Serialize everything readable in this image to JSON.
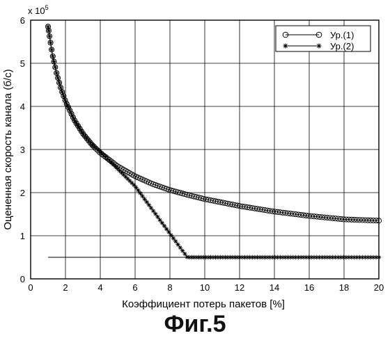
{
  "chart_data": {
    "type": "line",
    "title": "",
    "xlabel": "Коэффициент потерь пакетов [%]",
    "ylabel": "Оцененная скорость канала (б/с)",
    "y_multiplier": "x 10",
    "y_multiplier_exp": "5",
    "xlim": [
      0,
      20
    ],
    "ylim": [
      0,
      6
    ],
    "x_ticks": [
      "0",
      "2",
      "4",
      "6",
      "8",
      "10",
      "12",
      "14",
      "16",
      "18",
      "20"
    ],
    "y_ticks": [
      "0",
      "1",
      "2",
      "3",
      "4",
      "5",
      "6"
    ],
    "grid": "on",
    "legend_position": "top-right",
    "series": [
      {
        "name": "Ур.(1)",
        "marker": "circle",
        "x": [
          1,
          1.25,
          1.5,
          1.75,
          2,
          2.5,
          3,
          3.5,
          4,
          5,
          6,
          7,
          8,
          9,
          10,
          12,
          14,
          16,
          18,
          20
        ],
        "values": [
          5.85,
          5.2,
          4.75,
          4.4,
          4.12,
          3.69,
          3.37,
          3.12,
          2.92,
          2.61,
          2.38,
          2.2,
          2.06,
          1.95,
          1.85,
          1.69,
          1.56,
          1.46,
          1.38,
          1.35
        ]
      },
      {
        "name": "Ур.(2)",
        "marker": "star",
        "x": [
          1,
          1.25,
          1.5,
          1.75,
          2,
          2.5,
          3,
          3.5,
          4,
          5,
          6,
          7,
          8,
          9,
          10,
          12,
          14,
          16,
          18,
          20
        ],
        "values": [
          5.85,
          5.2,
          4.75,
          4.4,
          4.12,
          3.69,
          3.37,
          3.12,
          2.95,
          2.55,
          2.15,
          1.6,
          1.05,
          0.5,
          0.5,
          0.5,
          0.5,
          0.5,
          0.5,
          0.5
        ]
      },
      {
        "name": "",
        "marker": "none",
        "x": [
          1,
          20
        ],
        "values": [
          0.5,
          0.5
        ]
      }
    ]
  },
  "caption": "Фиг.5"
}
